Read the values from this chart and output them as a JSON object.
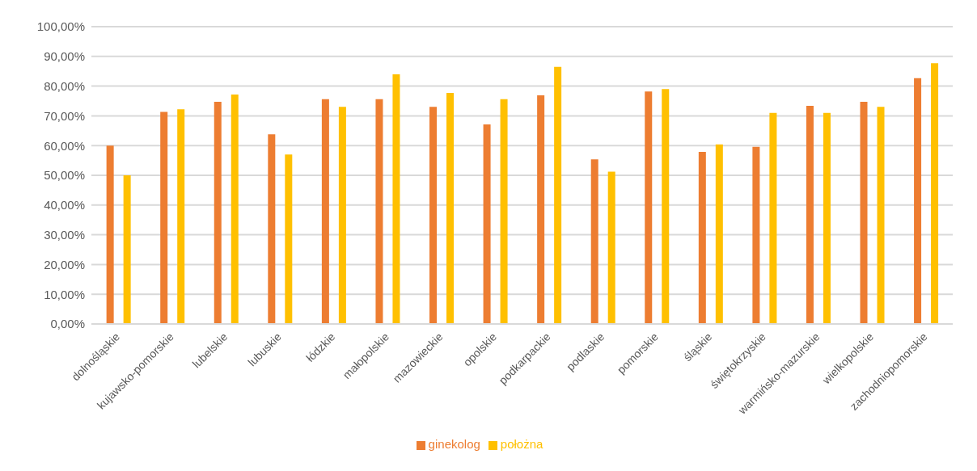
{
  "chart_data": {
    "type": "bar",
    "categories": [
      "dolnośląskie",
      "kujawsko-pomorskie",
      "lubelskie",
      "lubuskie",
      "łódzkie",
      "małopolskie",
      "mazowieckie",
      "opolskie",
      "podkarpackie",
      "podlaskie",
      "pomorskie",
      "śląskie",
      "świętokrzyskie",
      "warmińsko-mazurskie",
      "wielkopolskie",
      "zachodniopomorskie"
    ],
    "series": [
      {
        "name": "ginekolog",
        "color": "#ed7d31",
        "values": [
          60.0,
          71.3,
          74.7,
          63.8,
          75.6,
          75.6,
          73.0,
          67.1,
          76.9,
          55.4,
          78.2,
          57.9,
          59.6,
          73.4,
          74.7,
          82.7
        ]
      },
      {
        "name": "położna",
        "color": "#ffc000",
        "values": [
          50.0,
          72.2,
          77.2,
          57.0,
          73.0,
          84.0,
          77.7,
          75.6,
          86.5,
          51.2,
          79.0,
          60.4,
          71.0,
          71.0,
          73.0,
          87.7
        ]
      }
    ],
    "ylim": [
      0,
      100
    ],
    "yticks": [
      {
        "value": 0,
        "label": "0,00%"
      },
      {
        "value": 10,
        "label": "10,00%"
      },
      {
        "value": 20,
        "label": "20,00%"
      },
      {
        "value": 30,
        "label": "30,00%"
      },
      {
        "value": 40,
        "label": "40,00%"
      },
      {
        "value": 50,
        "label": "50,00%"
      },
      {
        "value": 60,
        "label": "60,00%"
      },
      {
        "value": 70,
        "label": "70,00%"
      },
      {
        "value": 80,
        "label": "80,00%"
      },
      {
        "value": 90,
        "label": "90,00%"
      },
      {
        "value": 100,
        "label": "100,00%"
      }
    ],
    "grid": "y",
    "legend": "bottom"
  }
}
